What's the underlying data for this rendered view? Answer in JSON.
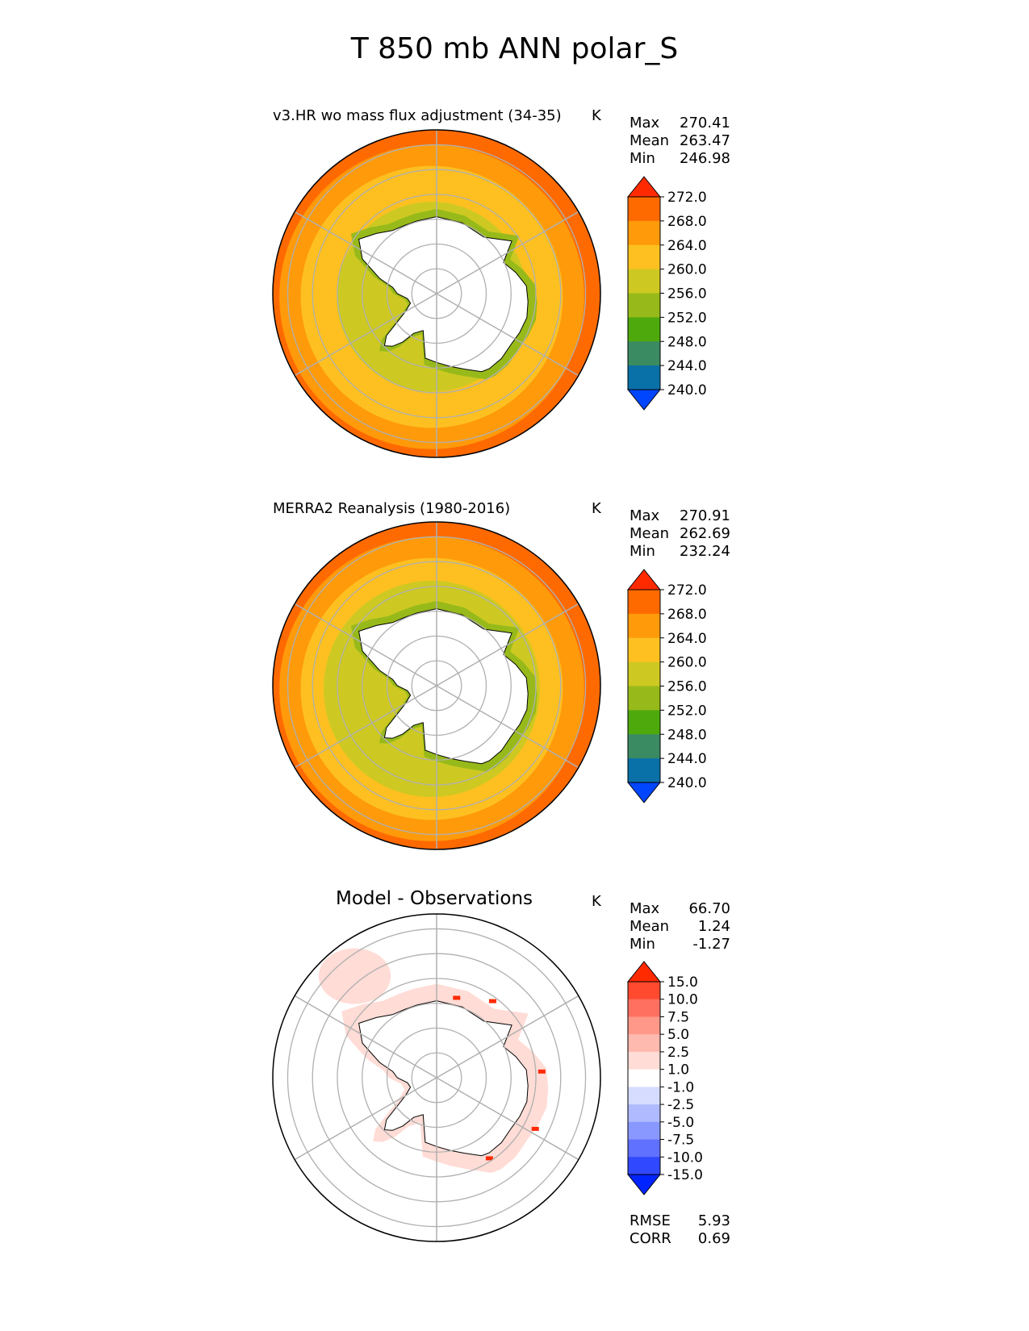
{
  "figure": {
    "title": "T 850 mb ANN polar_S"
  },
  "colors": {
    "land": "#ffffff",
    "grid": "#b0b0b0",
    "coast": "#000000"
  },
  "chart_data": [
    {
      "type": "heatmap",
      "title": "v3.HR wo mass flux adjustment (34-35)",
      "units": "K",
      "stats": {
        "max_label": "Max",
        "max": "270.41",
        "mean_label": "Mean",
        "mean": "263.47",
        "min_label": "Min",
        "min": "246.98"
      },
      "levels": [
        "272.0",
        "268.0",
        "264.0",
        "260.0",
        "256.0",
        "252.0",
        "248.0",
        "244.0",
        "240.0"
      ],
      "level_values": [
        272,
        268,
        264,
        260,
        256,
        252,
        248,
        244,
        240
      ],
      "colorbar": [
        "#ff2a00",
        "#ff6a00",
        "#ff9a0a",
        "#fdc020",
        "#cdc922",
        "#97ba1a",
        "#4ea90d",
        "#3a8a62",
        "#0a70a8",
        "#0046ff"
      ],
      "rings": [
        "#ff6a00",
        "#ff9a0a",
        "#fdc020",
        "#fdc020",
        "#cdc922"
      ]
    },
    {
      "type": "heatmap",
      "title": "MERRA2 Reanalysis (1980-2016)",
      "units": "K",
      "stats": {
        "max_label": "Max",
        "max": "270.91",
        "mean_label": "Mean",
        "mean": "262.69",
        "min_label": "Min",
        "min": "232.24"
      },
      "levels": [
        "272.0",
        "268.0",
        "264.0",
        "260.0",
        "256.0",
        "252.0",
        "248.0",
        "244.0",
        "240.0"
      ],
      "level_values": [
        272,
        268,
        264,
        260,
        256,
        252,
        248,
        244,
        240
      ],
      "colorbar": [
        "#ff2a00",
        "#ff6a00",
        "#ff9a0a",
        "#fdc020",
        "#cdc922",
        "#97ba1a",
        "#4ea90d",
        "#3a8a62",
        "#0a70a8",
        "#0046ff"
      ],
      "rings": [
        "#ff6a00",
        "#ff9a0a",
        "#fdc020",
        "#cdc922",
        "#cdc922"
      ]
    },
    {
      "type": "heatmap",
      "title": "Model - Observations",
      "units": "K",
      "stats": {
        "max_label": "Max",
        "max": "66.70",
        "mean_label": "Mean",
        "mean": "1.24",
        "min_label": "Min",
        "min": "-1.27"
      },
      "levels": [
        "15.0",
        "10.0",
        "7.5",
        "5.0",
        "2.5",
        "1.0",
        "-1.0",
        "-2.5",
        "-5.0",
        "-7.5",
        "-10.0",
        "-15.0"
      ],
      "level_values": [
        15,
        10,
        7.5,
        5,
        2.5,
        1,
        -1,
        -2.5,
        -5,
        -7.5,
        -10,
        -15
      ],
      "colorbar": [
        "#ff2a00",
        "#ff4a30",
        "#ff7060",
        "#ff9888",
        "#ffbab0",
        "#ffdcd6",
        "#ffffff",
        "#d6dcff",
        "#b0baff",
        "#8898ff",
        "#6070ff",
        "#3048ff",
        "#0024ff"
      ],
      "metrics": {
        "rmse_label": "RMSE",
        "rmse": "5.93",
        "corr_label": "CORR",
        "corr": "0.69"
      }
    }
  ]
}
